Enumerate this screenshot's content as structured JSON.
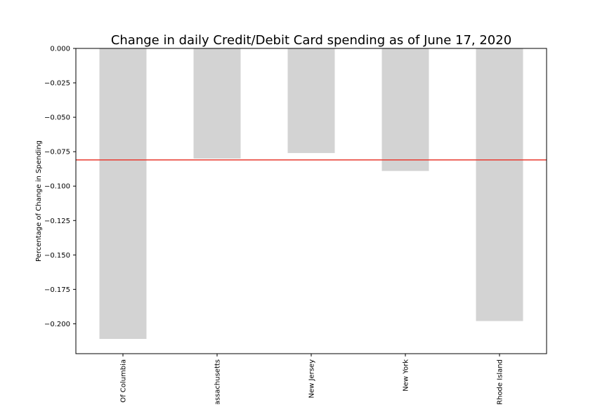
{
  "chart_data": {
    "type": "bar",
    "title": "Change in daily Credit/Debit Card spending as of June 17, 2020",
    "xlabel": "",
    "ylabel": "Percentage of Change in Spending",
    "categories": [
      "Of Columbia",
      "assachusetts",
      "New Jersey",
      "New York",
      "Rhode Island"
    ],
    "values": [
      -0.211,
      -0.08,
      -0.076,
      -0.089,
      -0.198
    ],
    "ylim": [
      -0.2217,
      0.0
    ],
    "yticks": [
      0.0,
      -0.025,
      -0.05,
      -0.075,
      -0.1,
      -0.125,
      -0.15,
      -0.175,
      -0.2
    ],
    "ytick_labels": [
      "0.000",
      "−0.025",
      "−0.050",
      "−0.075",
      "−0.100",
      "−0.125",
      "−0.150",
      "−0.175",
      "−0.200"
    ],
    "reference_line": {
      "value": -0.081,
      "color": "#e8392f"
    },
    "bar_color": "#d3d3d3",
    "grid": false,
    "legend": "none"
  }
}
